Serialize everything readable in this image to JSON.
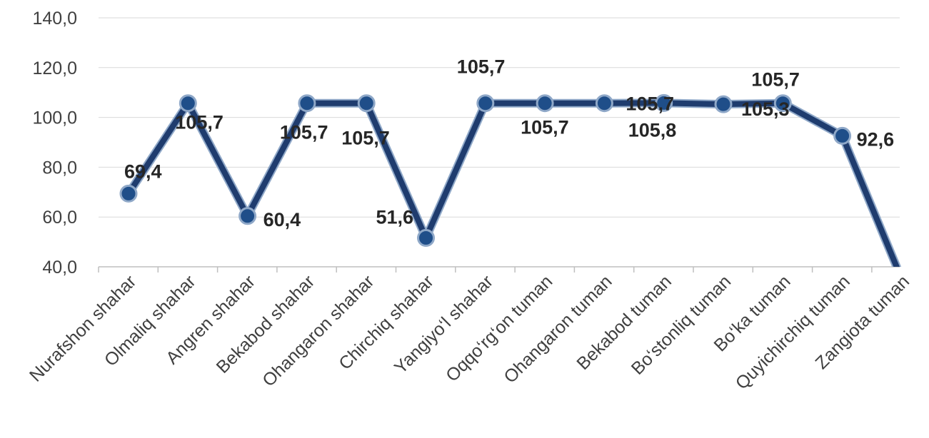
{
  "chart_data": {
    "type": "line",
    "categories": [
      "Nurafshon shahar",
      "Olmaliq shahar",
      "Angren shahar",
      "Bekabod shahar",
      "Ohangaron shahar",
      "Chirchiq shahar",
      "Yangiyo‘l shahar",
      "Oqqo‘rg‘on tuman",
      "Ohangaron tuman",
      "Bekabod tuman",
      "Bo‘stonliq tuman",
      "Bo‘ka tuman",
      "Quyichirchiq tuman",
      "Zangiota tuman"
    ],
    "values": [
      69.4,
      105.7,
      60.4,
      105.7,
      105.7,
      51.6,
      105.7,
      105.7,
      105.7,
      105.8,
      105.3,
      105.7,
      92.6,
      35.0
    ],
    "data_labels": [
      "69,4",
      "105,7",
      "60,4",
      "105,7",
      "105,7",
      "51,6",
      "105,7",
      "105,7",
      "105,7",
      "105,8",
      "105,3",
      "105,7",
      "92,6",
      ""
    ],
    "y_ticks": [
      "40,0",
      "60,0",
      "80,0",
      "100,0",
      "120,0",
      "140,0"
    ],
    "ylim": [
      40,
      140
    ],
    "title": "",
    "xlabel": "",
    "ylabel": "",
    "grid": true,
    "legend": "none",
    "colors": {
      "line": "#1f3c6e",
      "line_outline": "#8fa8c8",
      "marker": "#1f4e89"
    }
  }
}
